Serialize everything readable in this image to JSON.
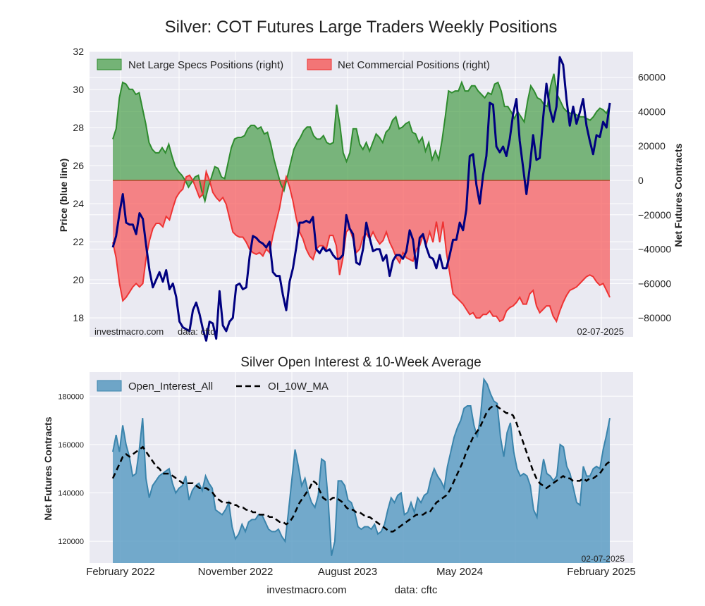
{
  "chart_data": [
    {
      "type": "area",
      "title": "Silver: COT Futures Large Traders Weekly Positions",
      "ylabel": "Price (blue line)",
      "y2label": "Net Futures Contracts",
      "ylim": [
        17.0,
        32.0
      ],
      "y2lim": [
        -91000,
        75000
      ],
      "yticks": [
        "18",
        "20",
        "22",
        "24",
        "26",
        "28",
        "30",
        "32"
      ],
      "y2ticks": [
        "60000",
        "40000",
        "20000",
        "0",
        "−20000",
        "−40000",
        "−60000",
        "−80000"
      ],
      "grid": true,
      "legend_position": "top-left",
      "legend": [
        "Net Large Specs Positions (right)",
        "Net Commercial Positions (right)"
      ],
      "annotations": {
        "source": "investmacro.com",
        "data": "data: cftc",
        "date": "02-07-2025"
      },
      "series": [
        {
          "name": "Net Large Specs Positions (right)",
          "color": "#2e8b2e",
          "values": [
            24000,
            30000,
            48000,
            57000,
            56000,
            53000,
            53000,
            50000,
            51000,
            42000,
            33000,
            22000,
            18000,
            16000,
            16000,
            19000,
            16000,
            21000,
            14000,
            8000,
            5000,
            3000,
            0,
            -4000,
            -1000,
            2000,
            3000,
            -6000,
            -12000,
            -4000,
            2000,
            8000,
            7000,
            2000,
            1000,
            10000,
            19000,
            24000,
            25000,
            25000,
            26000,
            30000,
            32000,
            32000,
            30000,
            31000,
            27000,
            28000,
            21000,
            12000,
            5000,
            -2000,
            -6000,
            2000,
            10000,
            18000,
            22000,
            25000,
            29000,
            31000,
            31000,
            26000,
            24000,
            24000,
            26000,
            22000,
            21000,
            22000,
            44000,
            32000,
            16000,
            11000,
            16000,
            30000,
            30000,
            21000,
            18000,
            22000,
            17000,
            22000,
            27000,
            25000,
            22000,
            28000,
            30000,
            35000,
            37000,
            30000,
            31000,
            33000,
            34000,
            28000,
            27000,
            22000,
            25000,
            17000,
            22000,
            12000,
            17000,
            12000,
            23000,
            37000,
            52000,
            51000,
            52000,
            52000,
            57000,
            52000,
            52000,
            55000,
            55000,
            52000,
            50000,
            48000,
            51000,
            50000,
            56000,
            57000,
            52000,
            43000,
            43000,
            40000,
            36000,
            40000,
            37000,
            34000,
            46000,
            55000,
            52000,
            48000,
            47000,
            44000,
            43000,
            55000,
            62000,
            50000,
            46000,
            42000,
            40000,
            39000,
            39000,
            38000,
            37000,
            37000,
            36000,
            35000,
            37000,
            40000,
            42000,
            41000,
            39000,
            44000
          ]
        },
        {
          "name": "Net Commercial Positions (right)",
          "color": "#ee3333",
          "values": [
            -36000,
            -45000,
            -60000,
            -70000,
            -68000,
            -65000,
            -62000,
            -60000,
            -62000,
            -60000,
            -45000,
            -35000,
            -28000,
            -25000,
            -25000,
            -27000,
            -21000,
            -23000,
            -16000,
            -10000,
            -7000,
            -5000,
            2000,
            3000,
            0,
            -5000,
            -10000,
            -8000,
            5000,
            0,
            -7000,
            -10000,
            -12000,
            -10000,
            -14000,
            -22000,
            -30000,
            -32000,
            -33000,
            -33000,
            -36000,
            -40000,
            -42000,
            -43000,
            -42000,
            -44000,
            -40000,
            -42000,
            -32000,
            -24000,
            -16000,
            -5000,
            2000,
            -4000,
            -12000,
            -22000,
            -30000,
            -34000,
            -40000,
            -44000,
            -46000,
            -40000,
            -38000,
            -38000,
            -40000,
            -32000,
            -32000,
            -38000,
            -55000,
            -45000,
            -30000,
            -28000,
            -34000,
            -42000,
            -40000,
            -33000,
            -31000,
            -34000,
            -30000,
            -34000,
            -37000,
            -35000,
            -30000,
            -36000,
            -40000,
            -45000,
            -48000,
            -42000,
            -45000,
            -46000,
            -47000,
            -40000,
            -38000,
            -32000,
            -37000,
            -30000,
            -36000,
            -24000,
            -36000,
            -24000,
            -42000,
            -54000,
            -66000,
            -68000,
            -70000,
            -72000,
            -75000,
            -78000,
            -77000,
            -80000,
            -80000,
            -78000,
            -78000,
            -76000,
            -79000,
            -79000,
            -82000,
            -81000,
            -76000,
            -74000,
            -73000,
            -71000,
            -68000,
            -72000,
            -72000,
            -66000,
            -64000,
            -73000,
            -77000,
            -75000,
            -73000,
            -73000,
            -79000,
            -82000,
            -76000,
            -71000,
            -67000,
            -64000,
            -63000,
            -62000,
            -60000,
            -58000,
            -56000,
            -55000,
            -56000,
            -59000,
            -61000,
            -60000,
            -64000,
            -68000
          ]
        },
        {
          "name": "Price (blue line)",
          "color": "#000080",
          "values": [
            21.7,
            22.3,
            23.5,
            24.5,
            23.0,
            22.9,
            22.9,
            22.4,
            23.5,
            23.2,
            21.8,
            20.5,
            19.6,
            20.0,
            20.4,
            19.9,
            20.5,
            19.5,
            19.8,
            19.1,
            17.8,
            17.5,
            17.4,
            17.3,
            18.4,
            18.8,
            18.2,
            17.4,
            16.8,
            17.8,
            17.7,
            16.9,
            19.4,
            17.6,
            17.3,
            17.8,
            18.0,
            19.7,
            19.8,
            19.5,
            19.6,
            21.2,
            22.3,
            22.2,
            22.0,
            21.9,
            21.7,
            22.0,
            20.4,
            20.2,
            20.2,
            19.2,
            18.4,
            19.9,
            20.6,
            21.7,
            23.0,
            23.0,
            23.1,
            23.0,
            23.3,
            21.6,
            21.4,
            21.7,
            21.5,
            21.6,
            21.3,
            21.1,
            21.1,
            21.3,
            23.4,
            22.7,
            22.4,
            20.9,
            20.8,
            21.6,
            23.0,
            22.2,
            21.5,
            21.6,
            21.6,
            21.0,
            21.3,
            20.2,
            21.0,
            21.3,
            21.3,
            21.1,
            21.5,
            22.6,
            22.1,
            20.6,
            22.2,
            22.4,
            21.7,
            21.2,
            21.1,
            20.6,
            21.3,
            20.6,
            20.6,
            21.3,
            22.1,
            22.1,
            23.0,
            22.6,
            23.7,
            26.5,
            26.6,
            25.0,
            24.0,
            25.5,
            26.5,
            29.3,
            29.2,
            27.0,
            26.7,
            27.0,
            26.5,
            27.4,
            28.7,
            29.5,
            27.3,
            25.9,
            24.5,
            25.9,
            27.6,
            26.3,
            26.4,
            28.5,
            30.3,
            29.0,
            28.3,
            29.1,
            31.7,
            31.3,
            29.5,
            28.1,
            29.1,
            28.2,
            28.8,
            29.5,
            28.1,
            27.3,
            26.6,
            27.6,
            27.5,
            28.3,
            28.0,
            29.3
          ]
        }
      ]
    },
    {
      "type": "area",
      "title": "Silver Open Interest & 10-Week Average",
      "ylabel": "Net Futures Contracts",
      "ylim": [
        111000,
        190000
      ],
      "yticks": [
        "120000",
        "140000",
        "160000",
        "180000"
      ],
      "xtick_labels": [
        "February 2022",
        "November 2022",
        "August 2023",
        "May 2024",
        "February 2025"
      ],
      "grid": true,
      "legend_position": "top-left",
      "legend": [
        "Open_Interest_All",
        "OI_10W_MA"
      ],
      "annotations": {
        "date": "02-07-2025"
      },
      "series": [
        {
          "name": "Open_Interest_All",
          "color": "#3a84ac",
          "values": [
            157000,
            164000,
            157000,
            168000,
            160000,
            155000,
            147000,
            148000,
            158000,
            171000,
            146000,
            138000,
            143000,
            145000,
            147000,
            148000,
            149000,
            150000,
            144000,
            140000,
            142000,
            143000,
            147000,
            137000,
            141000,
            143000,
            144000,
            141000,
            147000,
            144000,
            142000,
            133000,
            132000,
            131000,
            133000,
            136000,
            126000,
            121000,
            123000,
            127000,
            124000,
            128000,
            129000,
            129000,
            131000,
            131000,
            128000,
            125000,
            124000,
            124000,
            125000,
            122000,
            120000,
            132000,
            145000,
            158000,
            151000,
            143000,
            146000,
            140000,
            136000,
            134000,
            139000,
            154000,
            153000,
            137000,
            114000,
            120000,
            145000,
            145000,
            143000,
            137000,
            136000,
            132000,
            126000,
            125000,
            126000,
            126000,
            125000,
            127000,
            123000,
            124000,
            127000,
            133000,
            138000,
            136000,
            139000,
            140000,
            131000,
            132000,
            136000,
            132000,
            138000,
            136000,
            139000,
            140000,
            146000,
            150000,
            147000,
            145000,
            142000,
            151000,
            157000,
            163000,
            167000,
            170000,
            175000,
            176000,
            176000,
            168000,
            163000,
            172000,
            187000,
            185000,
            181000,
            178000,
            177000,
            163000,
            155000,
            165000,
            169000,
            157000,
            150000,
            147000,
            148000,
            147000,
            143000,
            133000,
            130000,
            145000,
            154000,
            148000,
            147000,
            145000,
            147000,
            160000,
            159000,
            151000,
            148000,
            142000,
            136000,
            135000,
            151000,
            147000,
            147000,
            150000,
            151000,
            150000,
            158000,
            164000,
            171000
          ]
        },
        {
          "name": "OI_10W_MA",
          "color": "#000000",
          "values": [
            146000,
            149000,
            152000,
            155000,
            156000,
            155000,
            156000,
            157000,
            158000,
            159000,
            157000,
            155000,
            153000,
            151000,
            150000,
            148000,
            148000,
            148000,
            147000,
            146000,
            145000,
            144000,
            144000,
            144000,
            144000,
            143000,
            142000,
            142000,
            142000,
            141000,
            140000,
            138000,
            137000,
            136000,
            136000,
            136000,
            135000,
            135000,
            134000,
            134000,
            133000,
            133000,
            132000,
            132000,
            131000,
            131000,
            131000,
            130000,
            130000,
            129000,
            128000,
            128000,
            127000,
            128000,
            130000,
            133000,
            136000,
            138000,
            140000,
            142000,
            145000,
            144000,
            141000,
            138000,
            137000,
            137000,
            138000,
            138000,
            137000,
            136000,
            134000,
            133000,
            133000,
            132000,
            132000,
            131000,
            130000,
            130000,
            129000,
            128000,
            127000,
            126000,
            125000,
            124000,
            124000,
            125000,
            126000,
            127000,
            128000,
            129000,
            130000,
            131000,
            131000,
            131000,
            132000,
            132000,
            134000,
            136000,
            137000,
            138000,
            139000,
            141000,
            144000,
            147000,
            150000,
            153000,
            157000,
            160000,
            163000,
            165000,
            167000,
            170000,
            173000,
            175000,
            176000,
            176000,
            175000,
            174000,
            173000,
            173000,
            172000,
            169000,
            165000,
            161000,
            157000,
            153000,
            149000,
            146000,
            144000,
            143000,
            142000,
            143000,
            144000,
            145000,
            146000,
            147000,
            146000,
            146000,
            145000,
            145000,
            145000,
            146000,
            145000,
            146000,
            146000,
            147000,
            148000,
            150000,
            152000,
            153000
          ]
        }
      ]
    }
  ],
  "footer": {
    "source": "investmacro.com",
    "data": "data: cftc"
  }
}
